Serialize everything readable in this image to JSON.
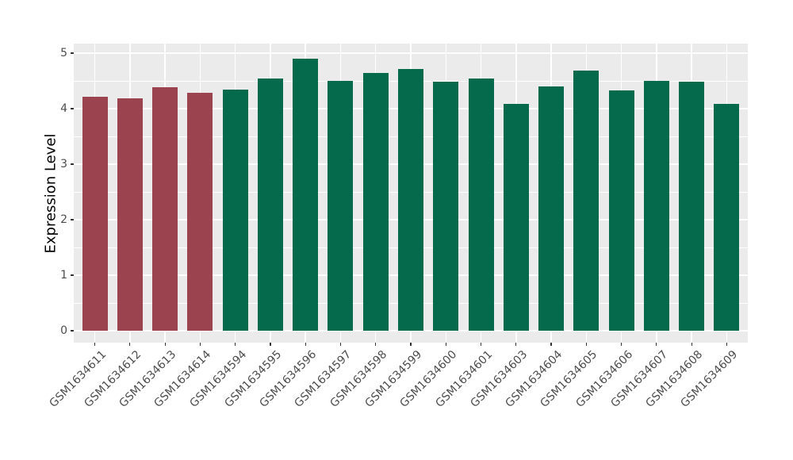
{
  "chart_data": {
    "type": "bar",
    "title": "",
    "xlabel": "",
    "ylabel": "Expression Level",
    "ylim": [
      0,
      5.17
    ],
    "yticks": [
      "0",
      "1",
      "2",
      "3",
      "4",
      "5"
    ],
    "grid": "major and minor horizontal white gridlines, vertical major gridlines per category, on gray panel",
    "legend_position": "none",
    "categories": [
      "GSM1634611",
      "GSM1634612",
      "GSM1634613",
      "GSM1634614",
      "GSM1634594",
      "GSM1634595",
      "GSM1634596",
      "GSM1634597",
      "GSM1634598",
      "GSM1634599",
      "GSM1634600",
      "GSM1634601",
      "GSM1634603",
      "GSM1634604",
      "GSM1634605",
      "GSM1634606",
      "GSM1634607",
      "GSM1634608",
      "GSM1634609"
    ],
    "values": [
      4.21,
      4.19,
      4.38,
      4.29,
      4.34,
      4.54,
      4.9,
      4.5,
      4.65,
      4.71,
      4.49,
      4.54,
      4.08,
      4.4,
      4.69,
      4.33,
      4.5,
      4.49,
      4.08
    ],
    "bar_group_keys": [
      "maroon",
      "maroon",
      "maroon",
      "maroon",
      "green",
      "green",
      "green",
      "green",
      "green",
      "green",
      "green",
      "green",
      "green",
      "green",
      "green",
      "green",
      "green",
      "green",
      "green"
    ],
    "colors": {
      "maroon": "#9B4450",
      "green": "#046A4B",
      "panel_bg": "#EBEBEB",
      "gridline": "#FFFFFF",
      "tick_mark": "#333333",
      "tick_label": "#4D4D4D",
      "axis_title": "#000000",
      "figure_bg": "#FFFFFF"
    }
  }
}
